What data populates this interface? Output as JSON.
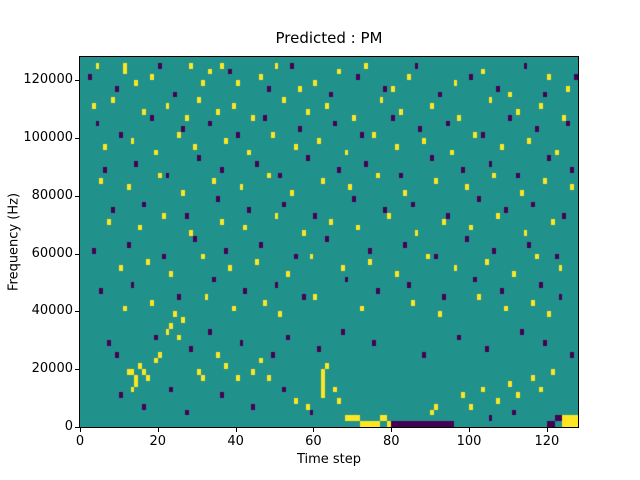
{
  "figure": {
    "title": "Predicted : PM",
    "xlabel": "Time step",
    "ylabel": "Frequency (Hz)"
  },
  "chart_data": {
    "type": "heatmap",
    "title": "Predicted : PM",
    "xlabel": "Time step",
    "ylabel": "Frequency (Hz)",
    "x_range": [
      0,
      128
    ],
    "y_range": [
      0,
      128000
    ],
    "grid_cols": 128,
    "grid_rows": 64,
    "hz_per_row": 2000,
    "xticks": [
      0,
      20,
      40,
      60,
      80,
      100,
      120
    ],
    "yticks": [
      0,
      20000,
      40000,
      60000,
      80000,
      100000,
      120000
    ],
    "legend": "none",
    "grid": false,
    "colors": {
      "background": "#21918c",
      "high": "#fde725",
      "low": "#440154",
      "frame": "#000000",
      "page": "#ffffff"
    },
    "cells_yellow": [
      [
        4,
        62
      ],
      [
        11,
        61
      ],
      [
        11,
        62
      ],
      [
        14,
        59
      ],
      [
        18,
        60
      ],
      [
        28,
        62
      ],
      [
        31,
        59
      ],
      [
        33,
        61
      ],
      [
        36,
        62
      ],
      [
        40,
        59
      ],
      [
        46,
        60
      ],
      [
        50,
        62
      ],
      [
        56,
        58
      ],
      [
        60,
        59
      ],
      [
        66,
        61
      ],
      [
        73,
        62
      ],
      [
        80,
        58
      ],
      [
        84,
        60
      ],
      [
        96,
        59
      ],
      [
        103,
        61
      ],
      [
        110,
        57
      ],
      [
        120,
        60
      ],
      [
        125,
        58
      ],
      [
        3,
        55
      ],
      [
        8,
        56
      ],
      [
        16,
        54
      ],
      [
        22,
        55
      ],
      [
        27,
        53
      ],
      [
        30,
        56
      ],
      [
        35,
        54
      ],
      [
        39,
        55
      ],
      [
        44,
        53
      ],
      [
        52,
        56
      ],
      [
        58,
        54
      ],
      [
        63,
        55
      ],
      [
        70,
        53
      ],
      [
        77,
        56
      ],
      [
        82,
        54
      ],
      [
        90,
        55
      ],
      [
        97,
        53
      ],
      [
        105,
        56
      ],
      [
        112,
        54
      ],
      [
        118,
        55
      ],
      [
        124,
        53
      ],
      [
        6,
        48
      ],
      [
        13,
        49
      ],
      [
        19,
        47
      ],
      [
        25,
        50
      ],
      [
        29,
        48
      ],
      [
        37,
        49
      ],
      [
        43,
        47
      ],
      [
        49,
        50
      ],
      [
        55,
        48
      ],
      [
        61,
        49
      ],
      [
        68,
        47
      ],
      [
        75,
        50
      ],
      [
        81,
        48
      ],
      [
        88,
        49
      ],
      [
        95,
        47
      ],
      [
        101,
        50
      ],
      [
        108,
        48
      ],
      [
        115,
        49
      ],
      [
        122,
        47
      ],
      [
        5,
        42
      ],
      [
        12,
        41
      ],
      [
        20,
        43
      ],
      [
        26,
        40
      ],
      [
        34,
        42
      ],
      [
        41,
        41
      ],
      [
        48,
        43
      ],
      [
        54,
        40
      ],
      [
        62,
        42
      ],
      [
        69,
        41
      ],
      [
        76,
        43
      ],
      [
        83,
        40
      ],
      [
        91,
        42
      ],
      [
        99,
        41
      ],
      [
        106,
        43
      ],
      [
        113,
        40
      ],
      [
        119,
        42
      ],
      [
        126,
        41
      ],
      [
        7,
        35
      ],
      [
        15,
        34
      ],
      [
        21,
        36
      ],
      [
        28,
        33
      ],
      [
        36,
        35
      ],
      [
        42,
        34
      ],
      [
        50,
        36
      ],
      [
        57,
        33
      ],
      [
        64,
        35
      ],
      [
        71,
        34
      ],
      [
        79,
        36
      ],
      [
        86,
        33
      ],
      [
        93,
        35
      ],
      [
        100,
        34
      ],
      [
        107,
        36
      ],
      [
        114,
        33
      ],
      [
        121,
        35
      ],
      [
        10,
        27
      ],
      [
        17,
        28
      ],
      [
        23,
        26
      ],
      [
        31,
        29
      ],
      [
        38,
        27
      ],
      [
        45,
        28
      ],
      [
        53,
        26
      ],
      [
        59,
        29
      ],
      [
        67,
        27
      ],
      [
        74,
        28
      ],
      [
        81,
        26
      ],
      [
        89,
        29
      ],
      [
        96,
        27
      ],
      [
        104,
        28
      ],
      [
        111,
        26
      ],
      [
        117,
        29
      ],
      [
        123,
        27
      ],
      [
        11,
        20
      ],
      [
        18,
        21
      ],
      [
        24,
        19
      ],
      [
        32,
        22
      ],
      [
        39,
        20
      ],
      [
        47,
        21
      ],
      [
        51,
        19
      ],
      [
        60,
        22
      ],
      [
        72,
        20
      ],
      [
        85,
        21
      ],
      [
        92,
        19
      ],
      [
        102,
        22
      ],
      [
        109,
        20
      ],
      [
        116,
        21
      ],
      [
        120,
        19
      ],
      [
        12,
        9
      ],
      [
        13,
        9
      ],
      [
        14,
        8
      ],
      [
        15,
        10
      ],
      [
        16,
        9
      ],
      [
        17,
        8
      ],
      [
        13,
        6
      ],
      [
        14,
        7
      ],
      [
        19,
        11
      ],
      [
        20,
        12
      ],
      [
        22,
        16
      ],
      [
        23,
        17
      ],
      [
        25,
        15
      ],
      [
        26,
        18
      ],
      [
        30,
        9
      ],
      [
        31,
        8
      ],
      [
        35,
        12
      ],
      [
        37,
        10
      ],
      [
        40,
        8
      ],
      [
        44,
        9
      ],
      [
        46,
        11
      ],
      [
        48,
        8
      ],
      [
        62,
        5
      ],
      [
        62,
        6
      ],
      [
        62,
        7
      ],
      [
        62,
        8
      ],
      [
        62,
        9
      ],
      [
        63,
        10
      ],
      [
        55,
        4
      ],
      [
        58,
        3
      ],
      [
        65,
        6
      ],
      [
        66,
        4
      ],
      [
        68,
        1
      ],
      [
        69,
        1
      ],
      [
        70,
        1
      ],
      [
        71,
        1
      ],
      [
        72,
        0
      ],
      [
        73,
        0
      ],
      [
        74,
        0
      ],
      [
        75,
        0
      ],
      [
        76,
        0
      ],
      [
        77,
        1
      ],
      [
        78,
        1
      ],
      [
        79,
        0
      ],
      [
        90,
        2
      ],
      [
        91,
        3
      ],
      [
        98,
        5
      ],
      [
        100,
        3
      ],
      [
        103,
        6
      ],
      [
        107,
        4
      ],
      [
        110,
        7
      ],
      [
        112,
        5
      ],
      [
        116,
        8
      ],
      [
        118,
        6
      ],
      [
        121,
        9
      ],
      [
        124,
        0
      ],
      [
        125,
        0
      ],
      [
        126,
        0
      ],
      [
        127,
        0
      ],
      [
        124,
        1
      ],
      [
        125,
        1
      ],
      [
        126,
        1
      ],
      [
        127,
        1
      ]
    ],
    "cells_purple": [
      [
        2,
        60
      ],
      [
        9,
        58
      ],
      [
        20,
        62
      ],
      [
        24,
        57
      ],
      [
        38,
        61
      ],
      [
        48,
        58
      ],
      [
        54,
        62
      ],
      [
        64,
        57
      ],
      [
        71,
        60
      ],
      [
        78,
        58
      ],
      [
        86,
        62
      ],
      [
        92,
        57
      ],
      [
        100,
        60
      ],
      [
        107,
        58
      ],
      [
        114,
        62
      ],
      [
        119,
        57
      ],
      [
        127,
        60
      ],
      [
        4,
        52
      ],
      [
        10,
        50
      ],
      [
        18,
        53
      ],
      [
        26,
        51
      ],
      [
        33,
        52
      ],
      [
        40,
        50
      ],
      [
        47,
        53
      ],
      [
        56,
        51
      ],
      [
        65,
        52
      ],
      [
        72,
        50
      ],
      [
        80,
        53
      ],
      [
        87,
        51
      ],
      [
        94,
        52
      ],
      [
        103,
        50
      ],
      [
        110,
        53
      ],
      [
        117,
        51
      ],
      [
        125,
        52
      ],
      [
        6,
        44
      ],
      [
        14,
        45
      ],
      [
        22,
        43
      ],
      [
        30,
        46
      ],
      [
        36,
        44
      ],
      [
        45,
        45
      ],
      [
        51,
        43
      ],
      [
        58,
        46
      ],
      [
        66,
        44
      ],
      [
        73,
        45
      ],
      [
        82,
        43
      ],
      [
        90,
        46
      ],
      [
        98,
        44
      ],
      [
        105,
        45
      ],
      [
        112,
        43
      ],
      [
        120,
        46
      ],
      [
        126,
        44
      ],
      [
        8,
        37
      ],
      [
        16,
        38
      ],
      [
        27,
        36
      ],
      [
        35,
        39
      ],
      [
        43,
        37
      ],
      [
        52,
        38
      ],
      [
        60,
        36
      ],
      [
        70,
        39
      ],
      [
        78,
        37
      ],
      [
        85,
        38
      ],
      [
        94,
        36
      ],
      [
        102,
        39
      ],
      [
        109,
        37
      ],
      [
        116,
        38
      ],
      [
        124,
        36
      ],
      [
        3,
        30
      ],
      [
        12,
        31
      ],
      [
        21,
        29
      ],
      [
        29,
        32
      ],
      [
        37,
        30
      ],
      [
        46,
        31
      ],
      [
        55,
        29
      ],
      [
        63,
        32
      ],
      [
        74,
        30
      ],
      [
        83,
        31
      ],
      [
        91,
        29
      ],
      [
        99,
        32
      ],
      [
        106,
        30
      ],
      [
        115,
        31
      ],
      [
        122,
        29
      ],
      [
        5,
        23
      ],
      [
        13,
        24
      ],
      [
        25,
        22
      ],
      [
        34,
        25
      ],
      [
        42,
        23
      ],
      [
        50,
        24
      ],
      [
        57,
        22
      ],
      [
        68,
        25
      ],
      [
        76,
        23
      ],
      [
        84,
        24
      ],
      [
        93,
        22
      ],
      [
        101,
        25
      ],
      [
        108,
        23
      ],
      [
        118,
        24
      ],
      [
        123,
        22
      ],
      [
        7,
        14
      ],
      [
        9,
        12
      ],
      [
        19,
        15
      ],
      [
        28,
        13
      ],
      [
        33,
        16
      ],
      [
        41,
        14
      ],
      [
        49,
        12
      ],
      [
        53,
        15
      ],
      [
        61,
        13
      ],
      [
        67,
        16
      ],
      [
        75,
        14
      ],
      [
        88,
        12
      ],
      [
        97,
        15
      ],
      [
        104,
        13
      ],
      [
        113,
        16
      ],
      [
        119,
        14
      ],
      [
        126,
        12
      ],
      [
        10,
        5
      ],
      [
        16,
        3
      ],
      [
        23,
        6
      ],
      [
        27,
        2
      ],
      [
        36,
        5
      ],
      [
        44,
        3
      ],
      [
        52,
        6
      ],
      [
        59,
        2
      ],
      [
        80,
        0
      ],
      [
        81,
        0
      ],
      [
        82,
        0
      ],
      [
        83,
        0
      ],
      [
        84,
        0
      ],
      [
        85,
        0
      ],
      [
        86,
        0
      ],
      [
        87,
        0
      ],
      [
        88,
        0
      ],
      [
        89,
        0
      ],
      [
        90,
        0
      ],
      [
        91,
        0
      ],
      [
        92,
        0
      ],
      [
        93,
        0
      ],
      [
        94,
        0
      ],
      [
        95,
        0
      ],
      [
        105,
        1
      ],
      [
        111,
        2
      ],
      [
        120,
        0
      ],
      [
        121,
        0
      ],
      [
        122,
        1
      ],
      [
        123,
        1
      ]
    ]
  }
}
